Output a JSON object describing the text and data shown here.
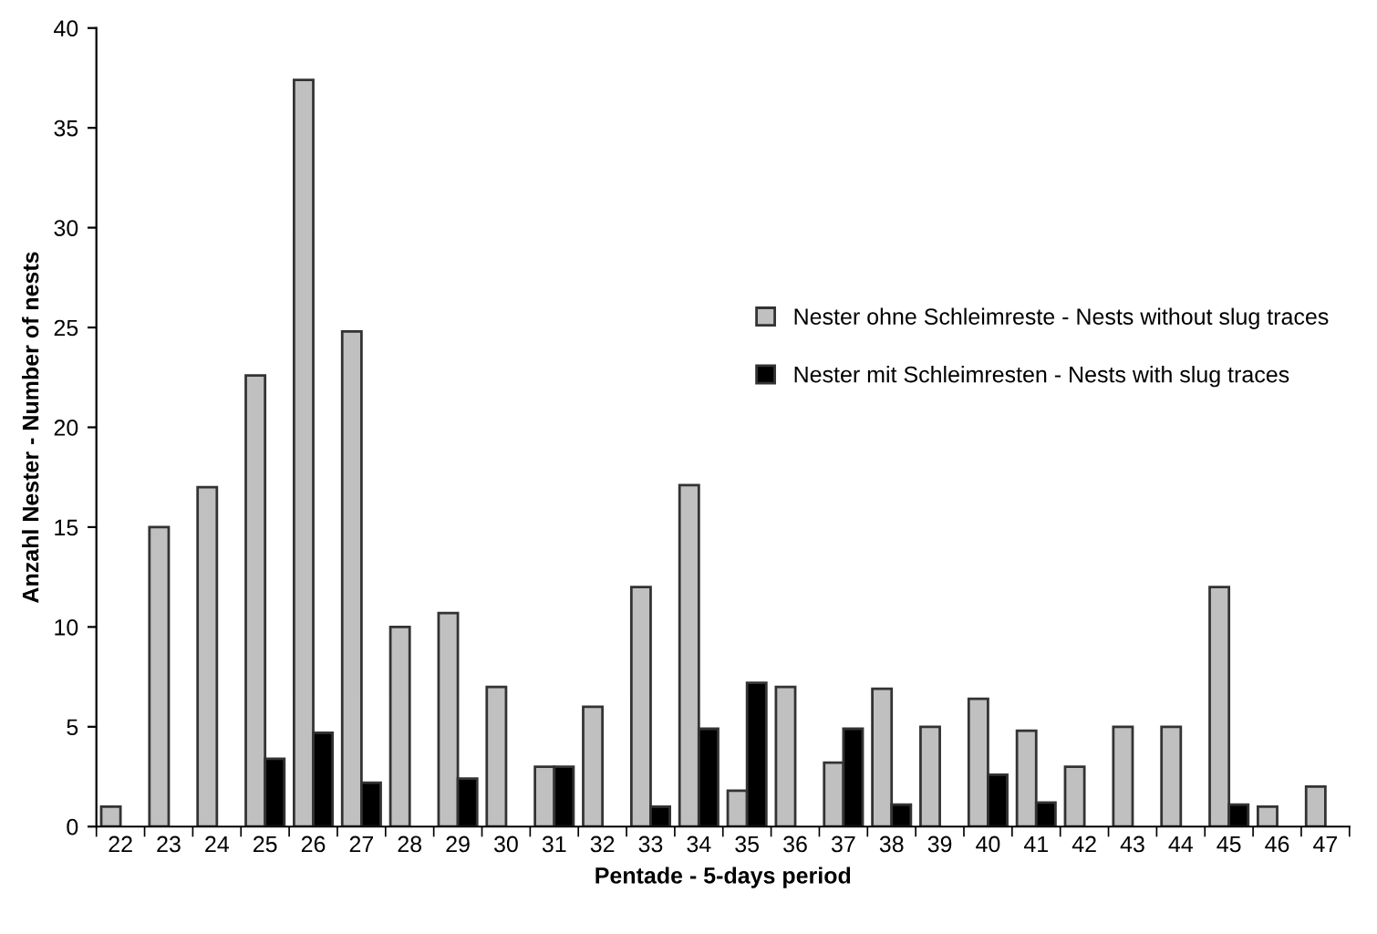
{
  "chart_data": {
    "type": "bar",
    "xlabel": "Pentade - 5-days period",
    "ylabel": "Anzahl Nester - Number of nests",
    "categories": [
      "22",
      "23",
      "24",
      "25",
      "26",
      "27",
      "28",
      "29",
      "30",
      "31",
      "32",
      "33",
      "34",
      "35",
      "36",
      "37",
      "38",
      "39",
      "40",
      "41",
      "42",
      "43",
      "44",
      "45",
      "46",
      "47"
    ],
    "series": [
      {
        "name": "Nester ohne Schleimreste - Nests without slug traces",
        "color": "#c0c0c0",
        "values": [
          1.0,
          15.0,
          17.0,
          22.6,
          37.4,
          24.8,
          10.0,
          10.7,
          7.0,
          3.0,
          6.0,
          12.0,
          17.1,
          1.8,
          7.0,
          3.2,
          6.9,
          5.0,
          6.4,
          4.8,
          3.0,
          5.0,
          5.0,
          12.0,
          1.0,
          2.0
        ]
      },
      {
        "name": "Nester mit Schleimresten - Nests with slug traces",
        "color": "#000000",
        "values": [
          null,
          null,
          null,
          3.4,
          4.7,
          2.2,
          null,
          2.4,
          null,
          3.0,
          null,
          1.0,
          4.9,
          7.2,
          null,
          4.9,
          1.1,
          null,
          2.6,
          1.2,
          null,
          null,
          null,
          1.1,
          null,
          null
        ]
      }
    ],
    "ylim": [
      0,
      40
    ],
    "yticks": [
      0,
      5,
      10,
      15,
      20,
      25,
      30,
      35,
      40
    ],
    "grid": false,
    "legend": "center right"
  }
}
